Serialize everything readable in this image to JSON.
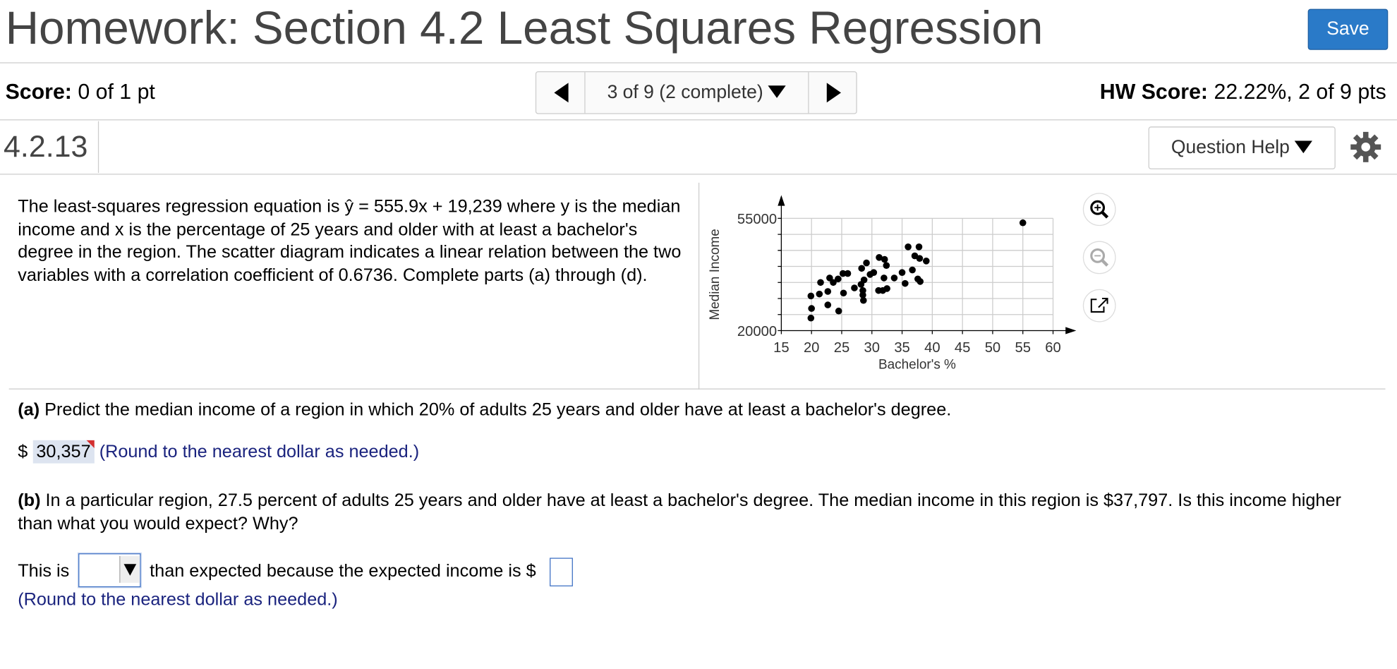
{
  "header": {
    "title": "Homework: Section 4.2 Least Squares Regression",
    "save": "Save"
  },
  "score": {
    "label": "Score:",
    "value": "0 of 1 pt"
  },
  "nav": {
    "position": "3 of 9 (2 complete)"
  },
  "hw_score": {
    "label": "HW Score:",
    "value": "22.22%, 2 of 9 pts"
  },
  "question": {
    "number": "4.2.13",
    "help": "Question Help",
    "intro_before": "The least-squares regression equation is ",
    "equation": "ŷ = 555.9x + 19,239",
    "intro_after": " where y is the median income and x is the percentage of 25 years and older with at least a bachelor's degree in the region. The scatter diagram indicates a linear relation between the two variables with a correlation coefficient of 0.6736. Complete parts (a) through (d)."
  },
  "part_a": {
    "label": "(a)",
    "text": "Predict the median income of a region in which 20% of adults 25 years and older have at least a bachelor's degree.",
    "answer_prefix": "$",
    "answer": "30,357",
    "hint": "(Round to the nearest dollar as needed.)"
  },
  "part_b": {
    "label": "(b)",
    "text": "In a particular region, 27.5 percent of adults 25 years and older have at least a bachelor's degree. The median income in this region is $37,797. Is this income higher than what you would expect? Why?",
    "sentence_before": "This is",
    "sentence_middle": "than expected because the expected income is $",
    "hint": "(Round to the nearest dollar as needed.)"
  },
  "chart_data": {
    "type": "scatter",
    "xlabel": "Bachelor's %",
    "ylabel": "Median Income",
    "color": "#000000",
    "grid": true,
    "x": [
      55,
      19.9,
      20,
      19.9,
      21.3,
      21.5,
      22.7,
      22.7,
      23,
      23.6,
      24.5,
      25.3,
      25.2,
      26,
      24.4,
      27.1,
      28.3,
      28.5,
      28.5,
      28.6,
      28.2,
      28.7,
      29.1,
      29.7,
      30.3,
      31.2,
      32.1,
      31.1,
      31.8,
      32.5,
      32,
      33.7,
      35,
      35.5,
      36,
      37.8,
      37.1,
      37.9,
      39,
      36.7,
      37.6,
      38,
      32.4
    ],
    "values": [
      53600,
      23900,
      26900,
      30800,
      31400,
      35000,
      32200,
      28000,
      36400,
      35000,
      26100,
      31700,
      37800,
      37800,
      36100,
      33300,
      39400,
      32500,
      31100,
      29400,
      34400,
      35800,
      41100,
      37500,
      38100,
      42800,
      42200,
      32500,
      32500,
      33100,
      36400,
      36400,
      38100,
      34700,
      46100,
      46100,
      43300,
      42500,
      41700,
      38900,
      36100,
      35300,
      40300
    ],
    "xlim": [
      15,
      60
    ],
    "xticks": [
      15,
      20,
      25,
      30,
      35,
      40,
      45,
      50,
      55,
      60
    ],
    "ylim": [
      20000,
      55000
    ],
    "yticks": [
      20000,
      {
        "value": 25000,
        "label": null
      },
      {
        "value": 30000,
        "label": null
      },
      {
        "value": 35000,
        "label": null
      },
      {
        "value": 40000,
        "label": null
      },
      {
        "value": 45000,
        "label": null
      },
      {
        "value": 50000,
        "label": null
      },
      55000
    ]
  }
}
